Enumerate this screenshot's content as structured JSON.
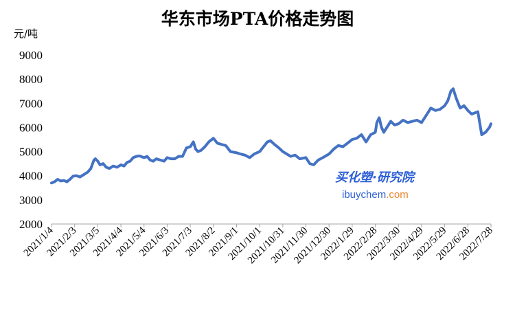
{
  "chart_data": {
    "type": "line",
    "title": "华东市场PTA价格走势图",
    "ylabel": "元/吨",
    "xlabel": "",
    "ylim": [
      2000,
      9000
    ],
    "yticks": [
      2000,
      3000,
      4000,
      5000,
      6000,
      7000,
      8000,
      9000
    ],
    "xtick_labels": [
      "2021/1/4",
      "2021/2/3",
      "2021/3/5",
      "2021/4/4",
      "2021/5/4",
      "2021/6/3",
      "2021/7/3",
      "2021/8/2",
      "2021/9/1",
      "2021/10/1",
      "2021/10/31",
      "2021/11/30",
      "2021/12/30",
      "2022/1/29",
      "2022/2/28",
      "2022/3/30",
      "2022/4/29",
      "2022/5/29",
      "2022/6/28",
      "2022/7/28"
    ],
    "x_range": [
      "2021/1/4",
      "2022/7/28"
    ],
    "grid": false,
    "legend": "none",
    "line_color": "#4472c4",
    "series": [
      {
        "x": [
          "2021/1/4",
          "2021/1/8",
          "2021/1/12",
          "2021/1/16",
          "2021/1/20",
          "2021/1/24",
          "2021/1/28",
          "2021/2/1",
          "2021/2/5",
          "2021/2/10",
          "2021/2/15",
          "2021/2/20",
          "2021/2/24",
          "2021/2/28",
          "2021/3/2",
          "2021/3/5",
          "2021/3/8",
          "2021/3/12",
          "2021/3/16",
          "2021/3/20",
          "2021/3/25",
          "2021/3/30",
          "2021/4/4",
          "2021/4/8",
          "2021/4/12",
          "2021/4/16",
          "2021/4/20",
          "2021/4/24",
          "2021/4/28",
          "2021/5/4",
          "2021/5/8",
          "2021/5/12",
          "2021/5/16",
          "2021/5/20",
          "2021/5/25",
          "2021/5/30",
          "2021/6/3",
          "2021/6/8",
          "2021/6/13",
          "2021/6/18",
          "2021/6/23",
          "2021/6/28",
          "2021/7/3",
          "2021/7/7",
          "2021/7/10",
          "2021/7/13",
          "2021/7/17",
          "2021/7/22",
          "2021/7/27",
          "2021/8/2",
          "2021/8/7",
          "2021/8/12",
          "2021/8/18",
          "2021/8/24",
          "2021/9/1",
          "2021/9/6",
          "2021/9/12",
          "2021/9/18",
          "2021/9/24",
          "2021/10/1",
          "2021/10/6",
          "2021/10/11",
          "2021/10/15",
          "2021/10/20",
          "2021/10/26",
          "2021/10/31",
          "2021/11/5",
          "2021/11/10",
          "2021/11/16",
          "2021/11/22",
          "2021/11/30",
          "2021/12/5",
          "2021/12/10",
          "2021/12/16",
          "2021/12/22",
          "2021/12/30",
          "2022/1/5",
          "2022/1/11",
          "2022/1/17",
          "2022/1/23",
          "2022/1/29",
          "2022/2/4",
          "2022/2/10",
          "2022/2/16",
          "2022/2/22",
          "2022/2/28",
          "2022/3/2",
          "2022/3/5",
          "2022/3/8",
          "2022/3/11",
          "2022/3/15",
          "2022/3/20",
          "2022/3/25",
          "2022/3/30",
          "2022/4/5",
          "2022/4/11",
          "2022/4/17",
          "2022/4/23",
          "2022/4/29",
          "2022/5/5",
          "2022/5/11",
          "2022/5/17",
          "2022/5/23",
          "2022/5/29",
          "2022/6/2",
          "2022/6/6",
          "2022/6/9",
          "2022/6/13",
          "2022/6/18",
          "2022/6/23",
          "2022/6/28",
          "2022/7/3",
          "2022/7/7",
          "2022/7/11",
          "2022/7/16",
          "2022/7/21",
          "2022/7/26",
          "2022/7/28"
        ],
        "y": [
          3700,
          3750,
          3850,
          3780,
          3800,
          3750,
          3850,
          3980,
          4000,
          3950,
          4050,
          4150,
          4300,
          4650,
          4700,
          4600,
          4450,
          4500,
          4350,
          4300,
          4400,
          4350,
          4450,
          4400,
          4550,
          4600,
          4750,
          4800,
          4820,
          4750,
          4800,
          4650,
          4600,
          4700,
          4650,
          4600,
          4750,
          4700,
          4700,
          4800,
          4800,
          5150,
          5200,
          5400,
          5100,
          5000,
          5050,
          5200,
          5400,
          5550,
          5350,
          5300,
          5250,
          5000,
          4950,
          4900,
          4850,
          4750,
          4900,
          5000,
          5200,
          5400,
          5450,
          5300,
          5150,
          5000,
          4900,
          4800,
          4850,
          4700,
          4750,
          4500,
          4450,
          4650,
          4750,
          4900,
          5100,
          5250,
          5200,
          5350,
          5500,
          5550,
          5700,
          5400,
          5700,
          5800,
          6200,
          6400,
          6000,
          5800,
          6000,
          6250,
          6100,
          6150,
          6300,
          6200,
          6250,
          6300,
          6200,
          6500,
          6800,
          6700,
          6750,
          6900,
          7100,
          7500,
          7600,
          7200,
          6800,
          6900,
          6700,
          6550,
          6600,
          6650,
          5700,
          5800,
          6000,
          6150
        ]
      }
    ]
  },
  "watermark": {
    "main": "买化塑·研究院",
    "site_a": "ibuychem",
    "site_b": ".com"
  }
}
